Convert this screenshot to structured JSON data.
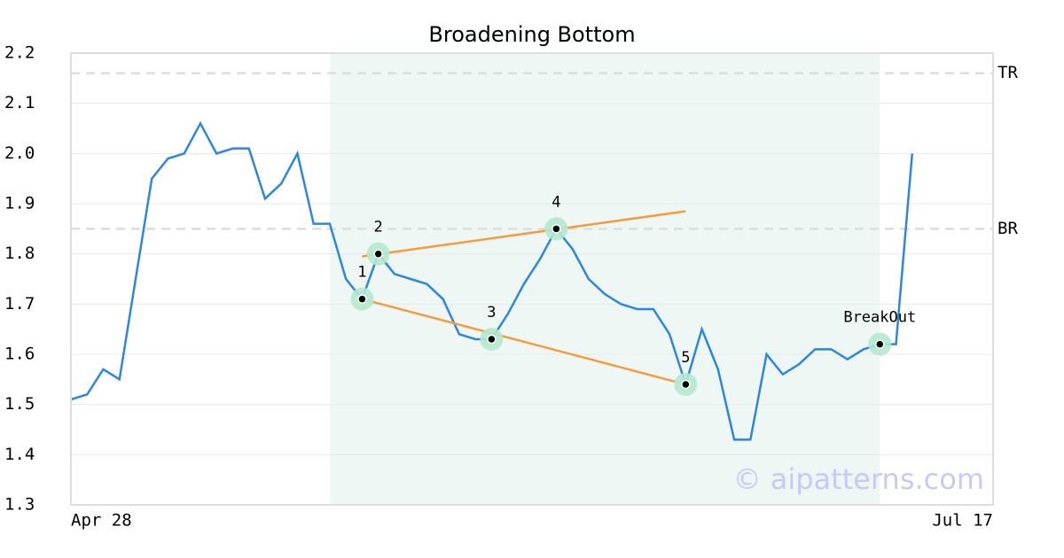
{
  "chart_data": {
    "type": "line",
    "title": "Broadening Bottom",
    "x": [
      0,
      1,
      2,
      3,
      4,
      5,
      6,
      7,
      8,
      9,
      10,
      11,
      12,
      13,
      14,
      15,
      16,
      17,
      18,
      19,
      20,
      21,
      22,
      23,
      24,
      25,
      26,
      27,
      28,
      29,
      30,
      31,
      32,
      33,
      34,
      35,
      36,
      37,
      38,
      39,
      40,
      41,
      42,
      43,
      44,
      45,
      46,
      47,
      48,
      49,
      50,
      51,
      52
    ],
    "series": [
      {
        "color": "#2e86de",
        "values": [
          1.51,
          1.52,
          1.57,
          1.55,
          1.75,
          1.95,
          1.99,
          2.0,
          2.06,
          2.0,
          2.01,
          2.01,
          1.91,
          1.94,
          2.0,
          1.86,
          1.86,
          1.75,
          1.71,
          1.8,
          1.76,
          1.75,
          1.74,
          1.71,
          1.64,
          1.63,
          1.63,
          1.68,
          1.74,
          1.79,
          1.85,
          1.81,
          1.75,
          1.72,
          1.7,
          1.69,
          1.69,
          1.64,
          1.54,
          1.65,
          1.57,
          1.43,
          1.43,
          1.6,
          1.56,
          1.58,
          1.61,
          1.61,
          1.59,
          1.61,
          1.62,
          1.62,
          2.0
        ]
      }
    ],
    "xlim": [
      0,
      57
    ],
    "xticks": [
      {
        "value": 0,
        "label": "Apr 28"
      },
      {
        "value": 57,
        "label": "Jul 17"
      }
    ],
    "ylim": [
      1.3,
      2.2
    ],
    "yticks": [
      1.3,
      1.4,
      1.5,
      1.6,
      1.7,
      1.8,
      1.9,
      {
        "value": 2,
        "label": "2.0"
      },
      2.1,
      2.2
    ],
    "grid": true,
    "highlight": [
      16,
      50
    ],
    "levels": [
      {
        "label": "TR",
        "value": 2.16
      },
      {
        "label": "BR",
        "value": 1.85
      }
    ],
    "points": [
      {
        "label": "1",
        "x": 18
      },
      {
        "label": "2",
        "x": 19
      },
      {
        "label": "3",
        "x": 26
      },
      {
        "label": "4",
        "x": 30
      },
      {
        "label": "5",
        "x": 38
      },
      {
        "label": "BreakOut",
        "x": 50
      }
    ],
    "trendlines": [
      {
        "color": "#f39c40",
        "x": [
          18,
          38
        ],
        "y": [
          1.795,
          1.885
        ]
      },
      {
        "color": "#f39c40",
        "x": [
          18,
          38
        ],
        "y": [
          1.71,
          1.54
        ]
      }
    ],
    "watermark": "© aipatterns.com"
  }
}
